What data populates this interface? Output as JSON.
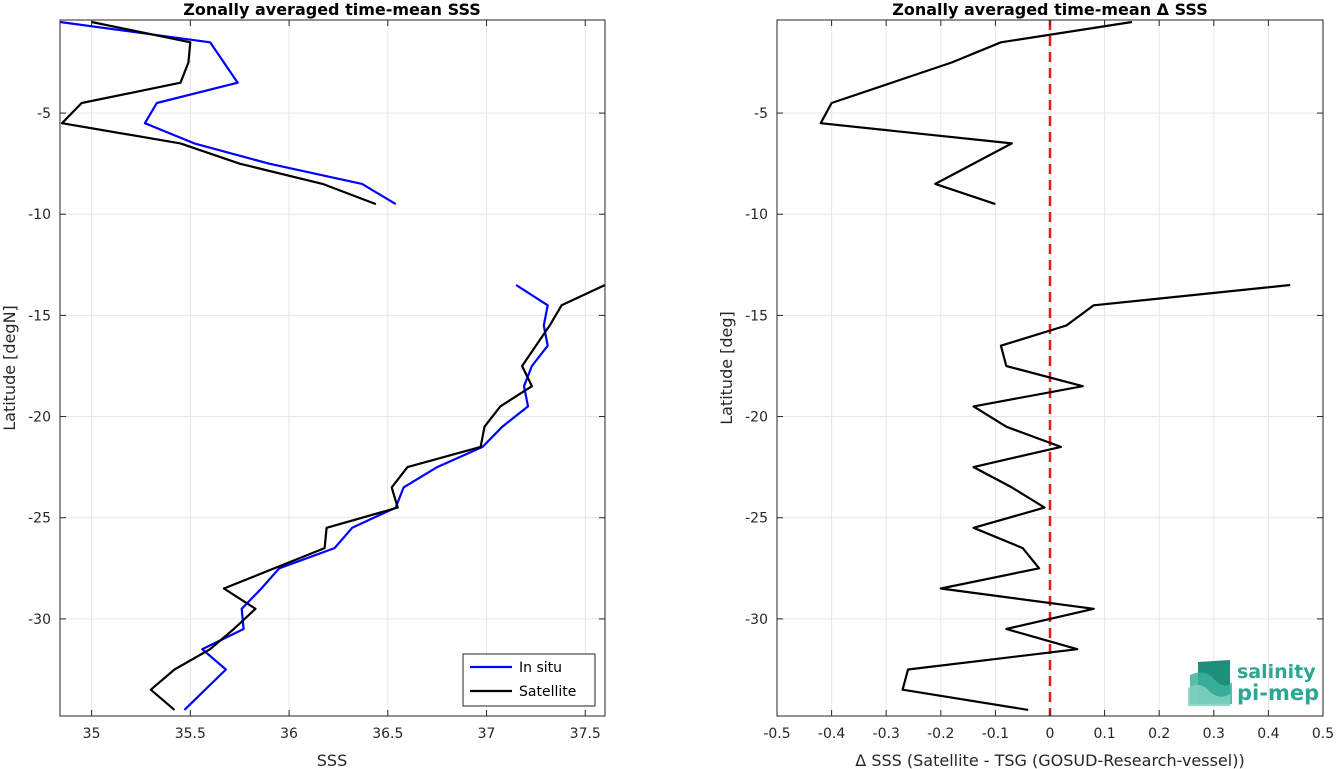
{
  "chart_data": [
    {
      "type": "line",
      "title": "Zonally averaged time-mean SSS",
      "xlabel": "SSS",
      "ylabel": "Latitude [degN]",
      "xlim": [
        34.84,
        37.6
      ],
      "ylim": [
        -34.8,
        -0.4
      ],
      "xticks": [
        35,
        35.5,
        36,
        36.5,
        37,
        37.5
      ],
      "xtick_labels": [
        "35",
        "35.5",
        "36",
        "36.5",
        "37",
        "37.5"
      ],
      "yticks": [
        -5,
        -10,
        -15,
        -20,
        -25,
        -30
      ],
      "ytick_labels": [
        "-5",
        "-10",
        "-15",
        "-20",
        "-25",
        "-30"
      ],
      "grid": true,
      "legend_position": "bottom-right",
      "series": [
        {
          "name": "In situ",
          "color": "#0000ff",
          "segments": [
            [
              [
                34.84,
                -0.5
              ],
              [
                35.6,
                -1.5
              ],
              [
                35.74,
                -3.5
              ],
              [
                35.33,
                -4.5
              ],
              [
                35.27,
                -5.5
              ],
              [
                35.52,
                -6.5
              ],
              [
                35.9,
                -7.5
              ],
              [
                36.37,
                -8.5
              ],
              [
                36.54,
                -9.5
              ]
            ],
            [
              [
                37.15,
                -13.5
              ],
              [
                37.31,
                -14.5
              ],
              [
                37.29,
                -15.5
              ],
              [
                37.31,
                -16.5
              ],
              [
                37.23,
                -17.5
              ],
              [
                37.19,
                -18.5
              ],
              [
                37.21,
                -19.5
              ],
              [
                37.08,
                -20.5
              ],
              [
                36.98,
                -21.5
              ],
              [
                36.75,
                -22.5
              ],
              [
                36.58,
                -23.5
              ],
              [
                36.54,
                -24.5
              ],
              [
                36.32,
                -25.5
              ],
              [
                36.23,
                -26.5
              ],
              [
                35.95,
                -27.5
              ],
              [
                35.86,
                -28.5
              ],
              [
                35.76,
                -29.5
              ],
              [
                35.77,
                -30.5
              ],
              [
                35.56,
                -31.5
              ],
              [
                35.68,
                -32.5
              ],
              [
                35.47,
                -34.5
              ]
            ]
          ]
        },
        {
          "name": "Satellite",
          "color": "#000000",
          "segments": [
            [
              [
                35.0,
                -0.5
              ],
              [
                35.5,
                -1.5
              ],
              [
                35.49,
                -2.5
              ],
              [
                35.45,
                -3.5
              ],
              [
                34.95,
                -4.5
              ],
              [
                34.85,
                -5.5
              ],
              [
                35.45,
                -6.5
              ],
              [
                35.75,
                -7.5
              ],
              [
                36.17,
                -8.5
              ],
              [
                36.44,
                -9.5
              ]
            ],
            [
              [
                37.6,
                -13.5
              ],
              [
                37.38,
                -14.5
              ],
              [
                37.32,
                -15.5
              ],
              [
                37.25,
                -16.5
              ],
              [
                37.18,
                -17.5
              ],
              [
                37.23,
                -18.5
              ],
              [
                37.07,
                -19.5
              ],
              [
                36.99,
                -20.5
              ],
              [
                36.97,
                -21.5
              ],
              [
                36.6,
                -22.5
              ],
              [
                36.52,
                -23.5
              ],
              [
                36.55,
                -24.5
              ],
              [
                36.19,
                -25.5
              ],
              [
                36.18,
                -26.5
              ],
              [
                35.67,
                -28.5
              ],
              [
                35.83,
                -29.5
              ],
              [
                35.72,
                -30.5
              ],
              [
                35.6,
                -31.5
              ],
              [
                35.42,
                -32.5
              ],
              [
                35.3,
                -33.5
              ],
              [
                35.42,
                -34.5
              ]
            ]
          ]
        }
      ]
    },
    {
      "type": "line",
      "title": "Zonally averaged time-mean Δ SSS",
      "xlabel": "Δ SSS (Satellite - TSG (GOSUD-Research-vessel))",
      "ylabel": "Latitude [deg]",
      "xlim": [
        -0.5,
        0.5
      ],
      "ylim": [
        -34.8,
        -0.4
      ],
      "xticks": [
        -0.5,
        -0.4,
        -0.3,
        -0.2,
        -0.1,
        0,
        0.1,
        0.2,
        0.3,
        0.4,
        0.5
      ],
      "xtick_labels": [
        "-0.5",
        "-0.4",
        "-0.3",
        "-0.2",
        "-0.1",
        "0",
        "0.1",
        "0.2",
        "0.3",
        "0.4",
        "0.5"
      ],
      "yticks": [
        -5,
        -10,
        -15,
        -20,
        -25,
        -30
      ],
      "ytick_labels": [
        "-5",
        "-10",
        "-15",
        "-20",
        "-25",
        "-30"
      ],
      "grid": true,
      "reference_line": {
        "x": 0,
        "color": "#e41a1c",
        "style": "dashed"
      },
      "series": [
        {
          "color": "#000000",
          "segments": [
            [
              [
                0.15,
                -0.5
              ],
              [
                -0.09,
                -1.5
              ],
              [
                -0.18,
                -2.5
              ],
              [
                -0.4,
                -4.5
              ],
              [
                -0.42,
                -5.5
              ],
              [
                -0.07,
                -6.5
              ],
              [
                -0.21,
                -8.5
              ],
              [
                -0.1,
                -9.5
              ]
            ],
            [
              [
                0.44,
                -13.5
              ],
              [
                0.08,
                -14.5
              ],
              [
                0.03,
                -15.5
              ],
              [
                -0.09,
                -16.5
              ],
              [
                -0.08,
                -17.5
              ],
              [
                0.06,
                -18.5
              ],
              [
                -0.14,
                -19.5
              ],
              [
                -0.08,
                -20.5
              ],
              [
                0.02,
                -21.5
              ],
              [
                -0.14,
                -22.5
              ],
              [
                -0.07,
                -23.5
              ],
              [
                -0.01,
                -24.5
              ],
              [
                -0.14,
                -25.5
              ],
              [
                -0.05,
                -26.5
              ],
              [
                -0.02,
                -27.5
              ],
              [
                -0.2,
                -28.5
              ],
              [
                0.08,
                -29.5
              ],
              [
                -0.08,
                -30.5
              ],
              [
                0.05,
                -31.5
              ],
              [
                -0.26,
                -32.5
              ],
              [
                -0.27,
                -33.5
              ],
              [
                -0.04,
                -34.5
              ]
            ]
          ]
        }
      ]
    }
  ],
  "legend": {
    "items": [
      "In situ",
      "Satellite"
    ]
  },
  "logo": {
    "line1": "salinity",
    "line2": "pi-mep"
  }
}
